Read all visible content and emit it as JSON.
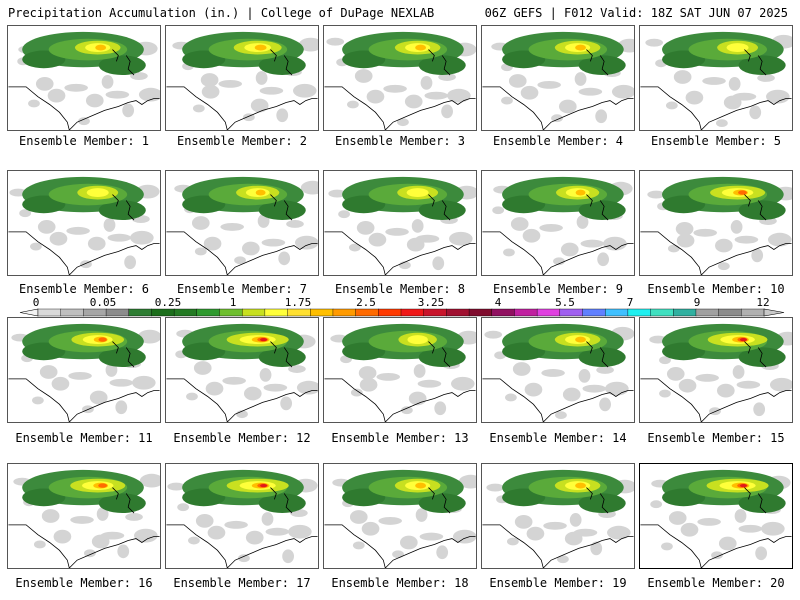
{
  "header": {
    "title": "Precipitation Accumulation (in.) | College of DuPage NEXLAB",
    "run_info": "06Z GEFS | F012 Valid: 18Z SAT JUN 07 2025"
  },
  "colorbar": {
    "tick_labels": [
      "0",
      "0.05",
      "0.25",
      "1",
      "1.75",
      "2.5",
      "3.25",
      "4",
      "5.5",
      "7",
      "9",
      "12"
    ],
    "colors": [
      "#d9d9d9",
      "#bfbfbf",
      "#a6a6a6",
      "#8c8c8c",
      "#2e7d32",
      "#1b6e1b",
      "#237a23",
      "#2f9a2f",
      "#6fbf2f",
      "#c8e020",
      "#ffff3a",
      "#ffe030",
      "#ffbf00",
      "#ff9a00",
      "#ff6a00",
      "#ff3a00",
      "#f01818",
      "#c8142a",
      "#a01030",
      "#800c2e",
      "#901060",
      "#c020a0",
      "#e040e0",
      "#a060f0",
      "#6080ff",
      "#40c0ff",
      "#20f0f0",
      "#40e0c0",
      "#30b0a0",
      "#a0a0a0",
      "#8c8c8c",
      "#b0b0b0"
    ]
  },
  "members": [
    {
      "label": "Ensemble Member: 1",
      "core": 0.55,
      "selected": false
    },
    {
      "label": "Ensemble Member: 2",
      "core": 0.6,
      "selected": false
    },
    {
      "label": "Ensemble Member: 3",
      "core": 0.55,
      "selected": false
    },
    {
      "label": "Ensemble Member: 4",
      "core": 0.55,
      "selected": false
    },
    {
      "label": "Ensemble Member: 5",
      "core": 0.45,
      "selected": false
    },
    {
      "label": "Ensemble Member: 6",
      "core": 0.45,
      "selected": false
    },
    {
      "label": "Ensemble Member: 7",
      "core": 0.5,
      "selected": false
    },
    {
      "label": "Ensemble Member: 8",
      "core": 0.45,
      "selected": false
    },
    {
      "label": "Ensemble Member: 9",
      "core": 0.5,
      "selected": false
    },
    {
      "label": "Ensemble Member: 10",
      "core": 0.75,
      "selected": false
    },
    {
      "label": "Ensemble Member: 11",
      "core": 0.7,
      "selected": false
    },
    {
      "label": "Ensemble Member: 12",
      "core": 0.9,
      "selected": false
    },
    {
      "label": "Ensemble Member: 13",
      "core": 0.4,
      "selected": false
    },
    {
      "label": "Ensemble Member: 14",
      "core": 0.55,
      "selected": false
    },
    {
      "label": "Ensemble Member: 15",
      "core": 0.85,
      "selected": false
    },
    {
      "label": "Ensemble Member: 16",
      "core": 0.75,
      "selected": false
    },
    {
      "label": "Ensemble Member: 17",
      "core": 0.9,
      "selected": false
    },
    {
      "label": "Ensemble Member: 18",
      "core": 0.55,
      "selected": false
    },
    {
      "label": "Ensemble Member: 19",
      "core": 0.55,
      "selected": false
    },
    {
      "label": "Ensemble Member: 20",
      "core": 0.9,
      "selected": true
    }
  ]
}
